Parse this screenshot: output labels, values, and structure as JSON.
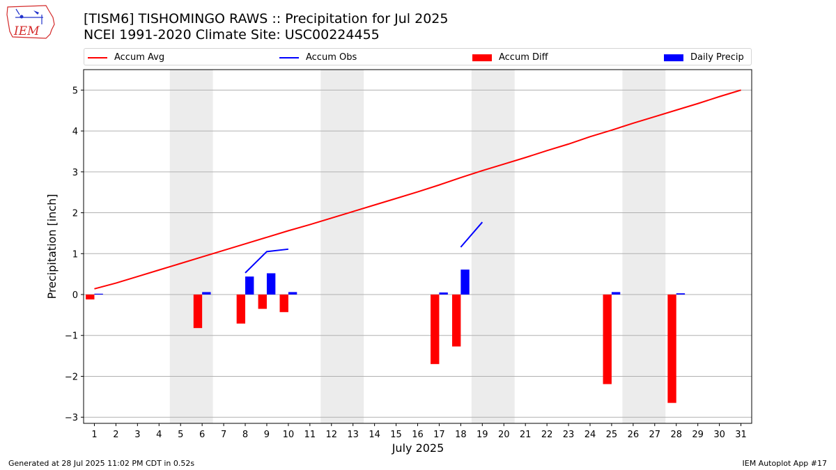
{
  "header": {
    "title_line1": "[TISM6] TISHOMINGO RAWS :: Precipitation for Jul 2025",
    "title_line2": "NCEI 1991-2020 Climate Site: USC00224455",
    "logo_text": "IEM"
  },
  "footer": {
    "generated": "Generated at 28 Jul 2025 11:02 PM CDT in 0.52s",
    "app": "IEM Autoplot App #17"
  },
  "chart_data": {
    "type": "bar",
    "xlabel": "July 2025",
    "ylabel": "Precipitation [inch]",
    "xlim": [
      0.5,
      31.5
    ],
    "ylim": [
      -3.15,
      5.5
    ],
    "yticks": [
      -3,
      -2,
      -1,
      0,
      1,
      2,
      3,
      4,
      5
    ],
    "grid": "horizontal",
    "legend_position": "top",
    "weekend_shading": [
      [
        4.5,
        6.5
      ],
      [
        11.5,
        13.5
      ],
      [
        18.5,
        20.5
      ],
      [
        25.5,
        27.5
      ]
    ],
    "days": [
      1,
      2,
      3,
      4,
      5,
      6,
      7,
      8,
      9,
      10,
      11,
      12,
      13,
      14,
      15,
      16,
      17,
      18,
      19,
      20,
      21,
      22,
      23,
      24,
      25,
      26,
      27,
      28,
      29,
      30,
      31
    ],
    "legend": [
      {
        "label": "Accum Avg",
        "kind": "line",
        "color": "#ff0000"
      },
      {
        "label": "Accum Obs",
        "kind": "line",
        "color": "#0000ff"
      },
      {
        "label": "Accum Diff",
        "kind": "bar",
        "color": "#ff0000"
      },
      {
        "label": "Daily Precip",
        "kind": "bar",
        "color": "#0000ff"
      }
    ],
    "series": [
      {
        "name": "Accum Avg",
        "type": "line",
        "color": "#ff0000",
        "values": [
          0.14,
          0.28,
          0.44,
          0.6,
          0.76,
          0.92,
          1.08,
          1.24,
          1.4,
          1.56,
          1.71,
          1.87,
          2.03,
          2.19,
          2.35,
          2.51,
          2.68,
          2.86,
          3.03,
          3.19,
          3.35,
          3.52,
          3.68,
          3.86,
          4.02,
          4.19,
          4.35,
          4.51,
          4.67,
          4.84,
          5.0
        ]
      },
      {
        "name": "Accum Obs",
        "type": "line",
        "color": "#0000ff",
        "values": [
          null,
          null,
          null,
          null,
          null,
          null,
          null,
          0.53,
          1.05,
          1.11,
          null,
          null,
          null,
          null,
          null,
          null,
          null,
          1.16,
          1.77,
          null,
          null,
          null,
          null,
          null,
          null,
          null,
          null,
          null,
          null,
          null,
          null
        ]
      },
      {
        "name": "Accum Diff",
        "type": "bar",
        "color": "#ff0000",
        "values": [
          -0.12,
          null,
          null,
          null,
          null,
          -0.82,
          null,
          -0.71,
          -0.35,
          -0.43,
          null,
          null,
          null,
          null,
          null,
          null,
          -1.7,
          -1.27,
          null,
          null,
          null,
          null,
          null,
          null,
          -2.19,
          null,
          null,
          -2.65,
          null,
          null,
          null
        ]
      },
      {
        "name": "Daily Precip",
        "type": "bar",
        "color": "#0000ff",
        "values": [
          0.02,
          null,
          null,
          null,
          null,
          0.06,
          null,
          0.44,
          0.52,
          0.06,
          null,
          null,
          null,
          null,
          null,
          null,
          0.05,
          0.61,
          null,
          null,
          null,
          null,
          null,
          null,
          0.06,
          null,
          null,
          0.03,
          null,
          null,
          null
        ]
      }
    ]
  }
}
